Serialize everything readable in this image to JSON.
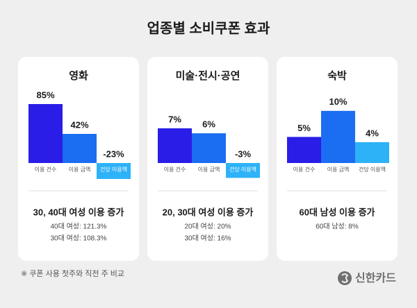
{
  "title": "업종별 소비쿠폰 효과",
  "footnote": "※ 쿠폰 사용 첫주와 직전 주 비교",
  "brand": "신한카드",
  "chart_data": [
    {
      "type": "bar",
      "title": "영화",
      "categories": [
        "이용 건수",
        "이용 금액",
        "건당 이용액"
      ],
      "values": [
        85,
        42,
        -23
      ],
      "value_labels": [
        "85%",
        "42%",
        "-23%"
      ],
      "colors": [
        "#2a1de8",
        "#1b6ef2",
        "#2eb2f7"
      ],
      "ylim": [
        0,
        100
      ],
      "headline": "30, 40대 여성 이용 증가",
      "notes": [
        "40대 여성: 121.3%",
        "30대 여성: 108.3%"
      ]
    },
    {
      "type": "bar",
      "title": "미술·전시·공연",
      "categories": [
        "이용 건수",
        "이용 금액",
        "건당 이용액"
      ],
      "values": [
        7,
        6,
        -3
      ],
      "value_labels": [
        "7%",
        "6%",
        "-3%"
      ],
      "colors": [
        "#2a1de8",
        "#1b6ef2",
        "#2eb2f7"
      ],
      "ylim": [
        0,
        14
      ],
      "headline": "20, 30대 여성 이용 증가",
      "notes": [
        "20대 여성: 20%",
        "30대 여성: 16%"
      ]
    },
    {
      "type": "bar",
      "title": "숙박",
      "categories": [
        "이용 건수",
        "이용 금액",
        "건당 이용액"
      ],
      "values": [
        5,
        10,
        4
      ],
      "value_labels": [
        "5%",
        "10%",
        "4%"
      ],
      "colors": [
        "#2a1de8",
        "#1b6ef2",
        "#2eb2f7"
      ],
      "ylim": [
        0,
        13.3
      ],
      "headline": "60대 남성 이용 증가",
      "notes": [
        "60대 남성: 8%"
      ]
    }
  ]
}
